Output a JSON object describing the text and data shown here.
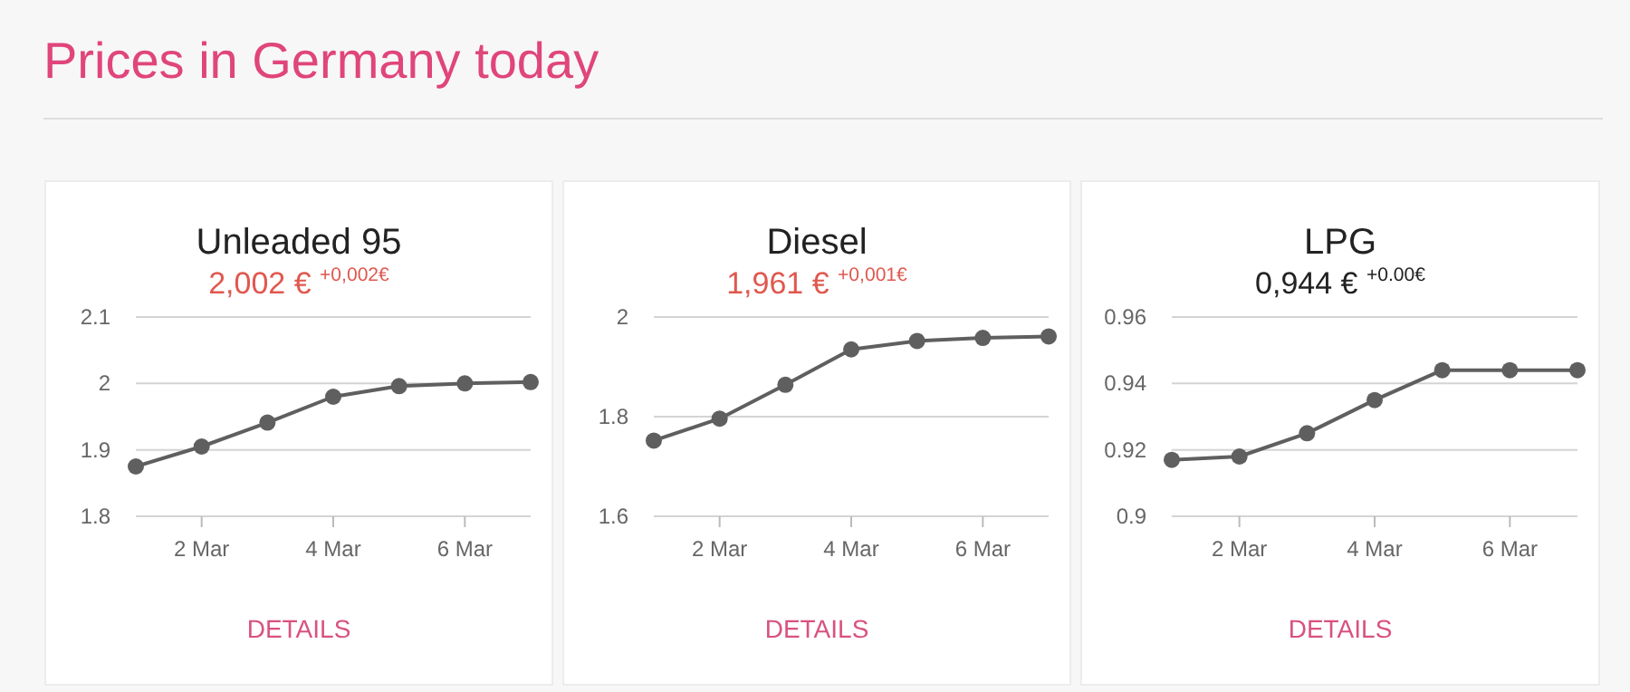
{
  "chart_data": [
    {
      "type": "other",
      "title": "Prices in Germany today"
    },
    {
      "type": "line",
      "title": "Unleaded 95",
      "subtitle": "2,002 € $^{+0,002€}$",
      "annotations": [
        "DETAILS"
      ],
      "x": [
        "--03-01",
        "--03-02",
        "--03-03",
        "--03-04",
        "--03-05",
        "--03-06",
        "--03-07"
      ],
      "series": [
        {
          "color": "#5f5f5f",
          "values": [
            1.875,
            1.905,
            1.941,
            1.98,
            1.996,
            2.0,
            2.002
          ]
        }
      ],
      "xlim": [
        "--03-01",
        "--03-07"
      ],
      "xticks": [
        {
          "value": "--03-02",
          "label": "2 Mar"
        },
        {
          "value": "--03-04",
          "label": "4 Mar"
        },
        {
          "value": "--03-06",
          "label": "6 Mar"
        }
      ],
      "ylim": [
        1.8,
        2.1
      ],
      "yticks": [
        1.8,
        1.9,
        2,
        2.1
      ],
      "grid": "y",
      "marker": "circle",
      "line_style": "solid"
    },
    {
      "type": "line",
      "title": "Diesel",
      "subtitle": "1,961 € $^{+0,001€}$",
      "annotations": [
        "DETAILS"
      ],
      "x": [
        "--03-01",
        "--03-02",
        "--03-03",
        "--03-04",
        "--03-05",
        "--03-06",
        "--03-07"
      ],
      "series": [
        {
          "color": "#5f5f5f",
          "values": [
            1.752,
            1.796,
            1.864,
            1.935,
            1.952,
            1.958,
            1.961
          ]
        }
      ],
      "xlim": [
        "--03-01",
        "--03-07"
      ],
      "xticks": [
        {
          "value": "--03-02",
          "label": "2 Mar"
        },
        {
          "value": "--03-04",
          "label": "4 Mar"
        },
        {
          "value": "--03-06",
          "label": "6 Mar"
        }
      ],
      "ylim": [
        1.6,
        2
      ],
      "yticks": [
        1.6,
        1.8,
        2
      ],
      "grid": "y",
      "marker": "circle",
      "line_style": "solid"
    },
    {
      "type": "line",
      "title": "LPG",
      "subtitle": "0,944 € $^{+0.00€}$",
      "annotations": [
        "DETAILS"
      ],
      "x": [
        "--03-01",
        "--03-02",
        "--03-03",
        "--03-04",
        "--03-05",
        "--03-06",
        "--03-07"
      ],
      "series": [
        {
          "color": "#5f5f5f",
          "values": [
            0.917,
            0.918,
            0.925,
            0.935,
            0.944,
            0.944,
            0.944
          ]
        }
      ],
      "xlim": [
        "--03-01",
        "--03-07"
      ],
      "xticks": [
        {
          "value": "--03-02",
          "label": "2 Mar"
        },
        {
          "value": "--03-04",
          "label": "4 Mar"
        },
        {
          "value": "--03-06",
          "label": "6 Mar"
        }
      ],
      "ylim": [
        0.9,
        0.96
      ],
      "yticks": [
        0.9,
        0.92,
        0.94,
        0.96
      ],
      "grid": "y",
      "marker": "circle",
      "line_style": "solid"
    }
  ]
}
